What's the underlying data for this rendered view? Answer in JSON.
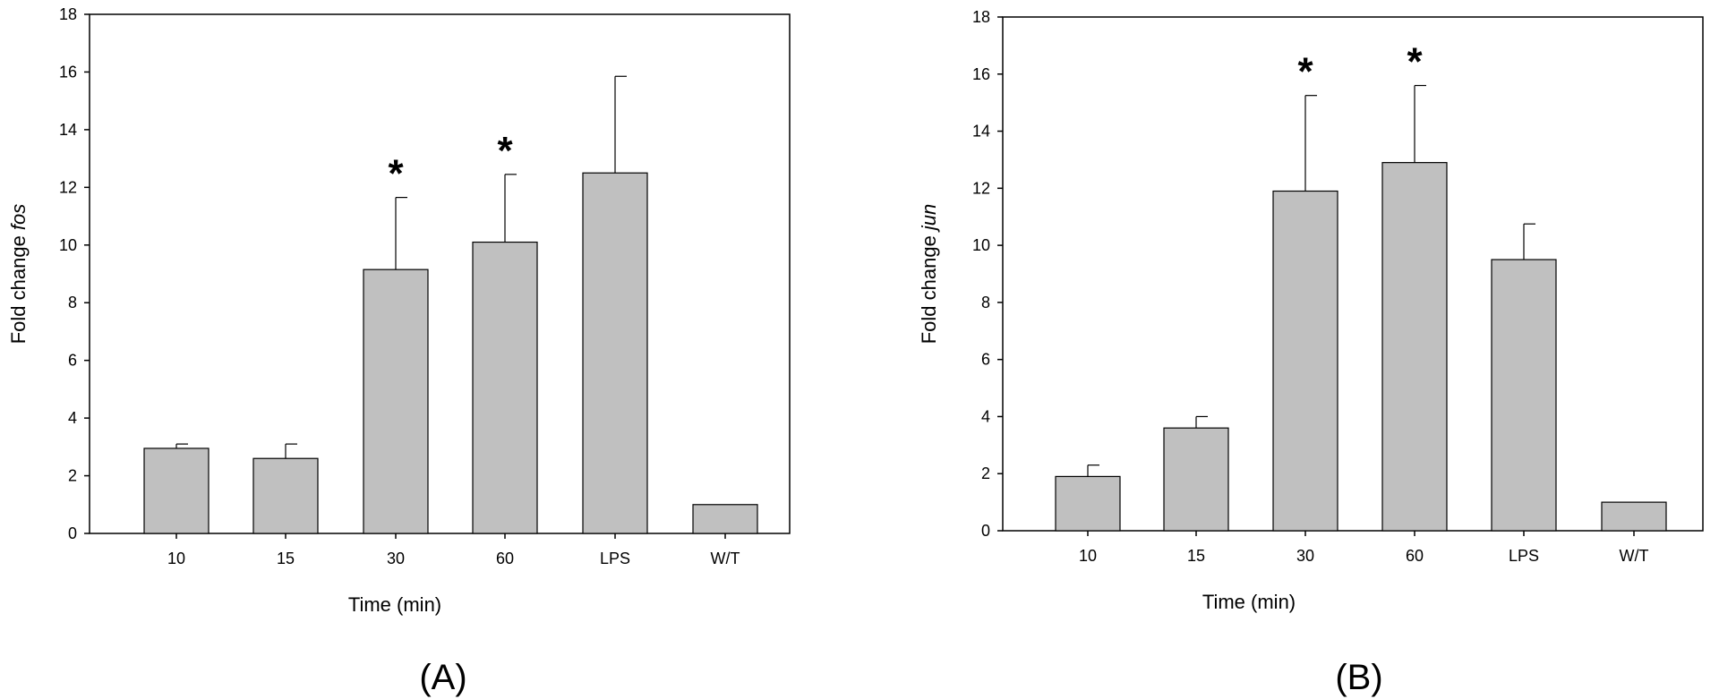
{
  "chart_data": [
    {
      "type": "bar",
      "panel_label": "(A)",
      "categories": [
        "10",
        "15",
        "30",
        "60",
        "LPS",
        "W/T"
      ],
      "values": [
        2.95,
        2.6,
        9.15,
        10.1,
        12.5,
        1.0
      ],
      "error_upper": [
        3.1,
        3.1,
        11.65,
        12.45,
        15.85,
        1.0
      ],
      "significant": [
        "",
        "",
        "*",
        "*",
        "",
        ""
      ],
      "xlabel": "Time (min)",
      "ylabel_prefix": "Fold change ",
      "ylabel_gene": "fos",
      "ylim": [
        0,
        18
      ],
      "yticks": [
        "0",
        "2",
        "4",
        "6",
        "8",
        "10",
        "12",
        "14",
        "16",
        "18"
      ],
      "bar_color": "#c0c0c0"
    },
    {
      "type": "bar",
      "panel_label": "(B)",
      "categories": [
        "10",
        "15",
        "30",
        "60",
        "LPS",
        "W/T"
      ],
      "values": [
        1.9,
        3.6,
        11.9,
        12.9,
        9.5,
        1.0
      ],
      "error_upper": [
        2.3,
        4.0,
        15.25,
        15.6,
        10.75,
        1.0
      ],
      "significant": [
        "",
        "",
        "*",
        "*",
        "",
        ""
      ],
      "xlabel": "Time (min)",
      "ylabel_prefix": "Fold change ",
      "ylabel_gene": "jun",
      "ylim": [
        0,
        18
      ],
      "yticks": [
        "0",
        "2",
        "4",
        "6",
        "8",
        "10",
        "12",
        "14",
        "16",
        "18"
      ],
      "bar_color": "#c0c0c0"
    }
  ]
}
